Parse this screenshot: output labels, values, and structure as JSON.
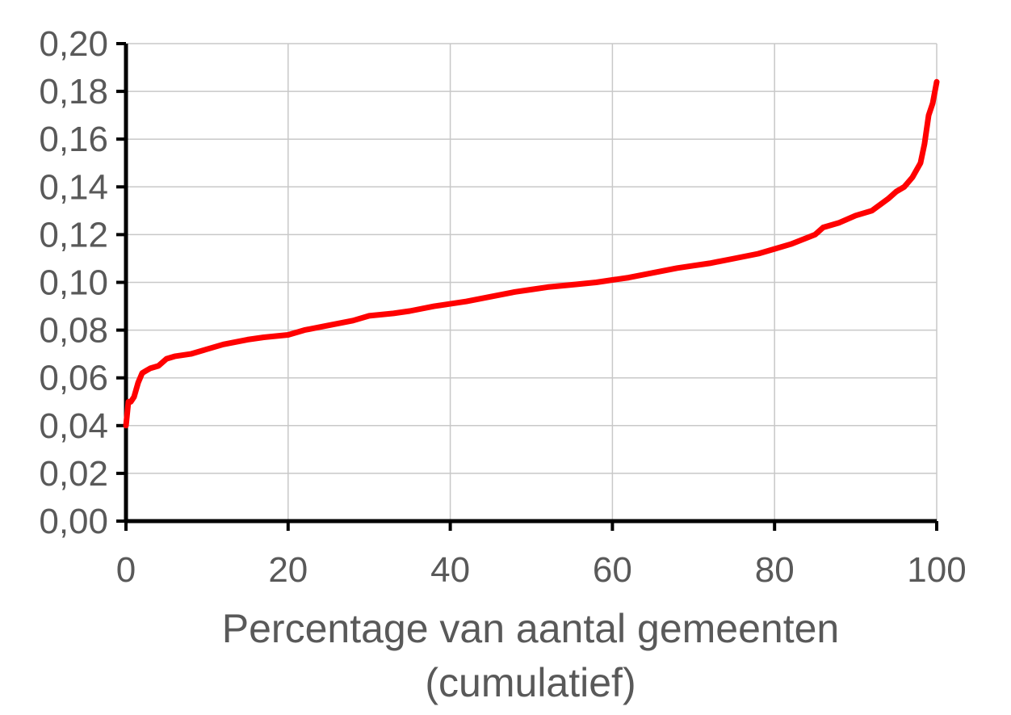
{
  "chart_data": {
    "type": "line",
    "title": "",
    "xlabel_lines": [
      "Percentage van aantal gemeenten",
      "(cumulatief)"
    ],
    "ylabel": "",
    "xlim": [
      0,
      100
    ],
    "ylim": [
      0,
      0.2
    ],
    "x_ticks": [
      0,
      20,
      40,
      60,
      80,
      100
    ],
    "x_tick_labels": [
      "0",
      "20",
      "40",
      "60",
      "80",
      "100"
    ],
    "y_ticks": [
      0,
      0.02,
      0.04,
      0.06,
      0.08,
      0.1,
      0.12,
      0.14,
      0.16,
      0.18,
      0.2
    ],
    "y_tick_labels": [
      "0,00",
      "0,02",
      "0,04",
      "0,06",
      "0,08",
      "0,10",
      "0,12",
      "0,14",
      "0,16",
      "0,18",
      "0,20"
    ],
    "grid": true,
    "legend": "none",
    "colors": {
      "line": "#ff0000",
      "grid": "#c8c8c8",
      "axis": "#000000",
      "text": "#595959"
    },
    "series": [
      {
        "x": [
          0,
          0.3,
          0.6,
          1,
          1.5,
          2,
          2.5,
          3,
          4,
          5,
          6,
          8,
          10,
          12,
          15,
          17,
          20,
          22,
          25,
          28,
          30,
          33,
          35,
          38,
          40,
          42,
          45,
          48,
          50,
          52,
          55,
          58,
          60,
          62,
          65,
          68,
          70,
          72,
          75,
          78,
          80,
          82,
          85,
          86,
          88,
          90,
          92,
          94,
          95,
          96,
          97,
          98,
          98.5,
          99,
          99.5,
          100
        ],
        "y": [
          0.04,
          0.05,
          0.05,
          0.052,
          0.058,
          0.062,
          0.063,
          0.064,
          0.065,
          0.068,
          0.069,
          0.07,
          0.072,
          0.074,
          0.076,
          0.077,
          0.078,
          0.08,
          0.082,
          0.084,
          0.086,
          0.087,
          0.088,
          0.09,
          0.091,
          0.092,
          0.094,
          0.096,
          0.097,
          0.098,
          0.099,
          0.1,
          0.101,
          0.102,
          0.104,
          0.106,
          0.107,
          0.108,
          0.11,
          0.112,
          0.114,
          0.116,
          0.12,
          0.123,
          0.125,
          0.128,
          0.13,
          0.135,
          0.138,
          0.14,
          0.144,
          0.15,
          0.158,
          0.17,
          0.175,
          0.184
        ]
      }
    ]
  }
}
